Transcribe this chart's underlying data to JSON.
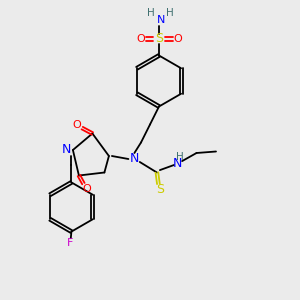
{
  "bg_color": "#ebebeb",
  "colors": {
    "N": "#0000ff",
    "O": "#ff0000",
    "S": "#cccc00",
    "F": "#cc00cc",
    "H": "#407070",
    "C": "#000000"
  },
  "lw": 1.3,
  "fs": 8.0
}
